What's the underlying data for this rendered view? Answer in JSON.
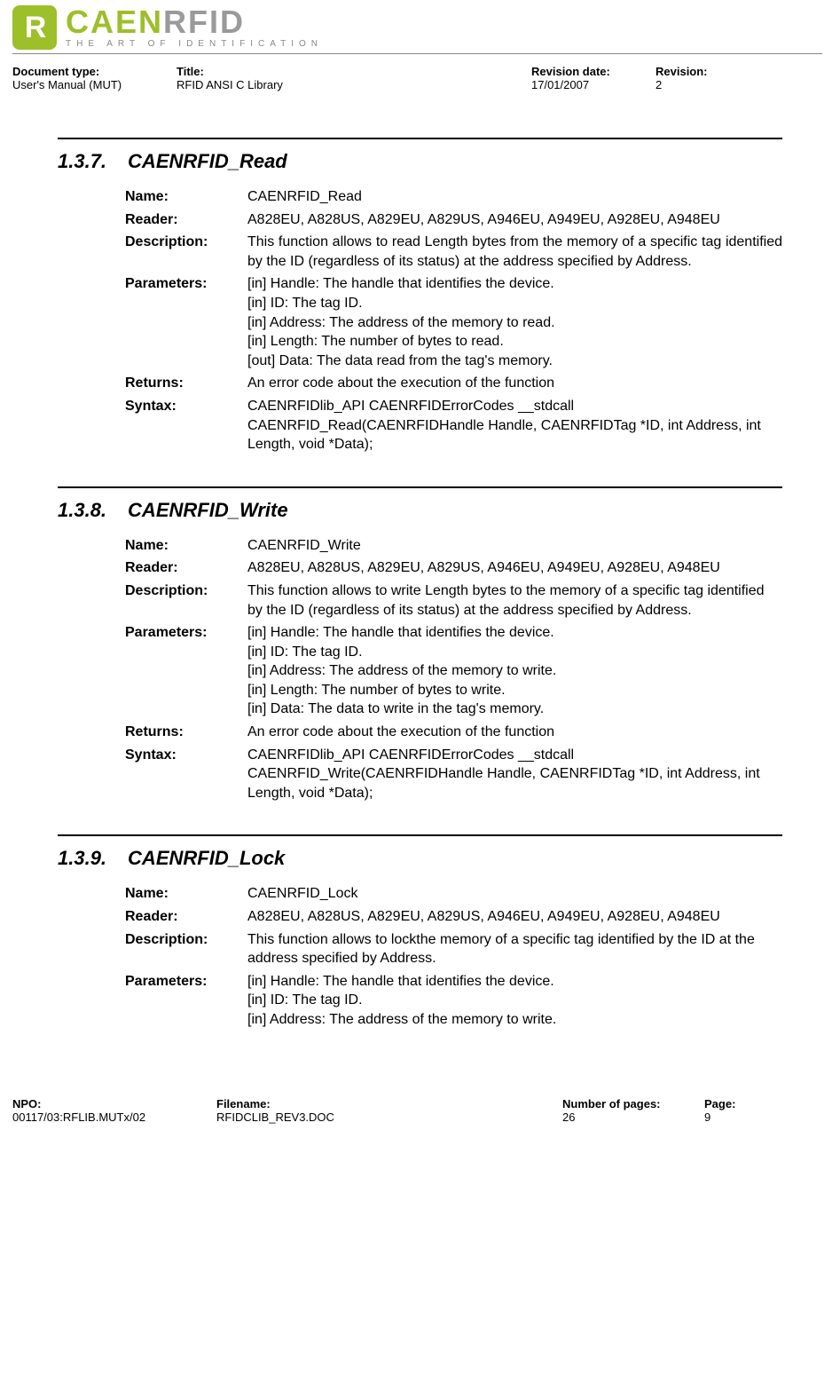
{
  "logo": {
    "glyph": "R",
    "brand_a": "CAEN",
    "brand_b": "RFID",
    "tagline": "THE ART OF IDENTIFICATION",
    "accent_color": "#9dbf2a",
    "muted_color": "#9a9a9a"
  },
  "header_meta": {
    "doc_type_label": "Document type:",
    "doc_type_value": "User's Manual (MUT)",
    "title_label": "Title:",
    "title_value": "RFID ANSI C Library",
    "rev_date_label": "Revision date:",
    "rev_date_value": "17/01/2007",
    "revision_label": "Revision:",
    "revision_value": "2"
  },
  "labels": {
    "name": "Name:",
    "reader": "Reader:",
    "description": "Description:",
    "parameters": "Parameters:",
    "returns": "Returns:",
    "syntax": "Syntax:"
  },
  "sections": [
    {
      "num": "1.3.7.",
      "title": "CAENRFID_Read",
      "name": "CAENRFID_Read",
      "reader": "A828EU, A828US, A829EU, A829US, A946EU, A949EU, A928EU, A948EU",
      "description": "This function allows to read Length bytes from the memory of a specific tag identified by the ID (regardless of its status) at the address specified by Address.",
      "parameters": [
        "[in]  Handle: The handle that identifies the device.",
        "[in]  ID: The tag ID.",
        "[in]  Address: The address of the memory to read.",
        "[in]  Length: The number of bytes to read.",
        "[out] Data: The data read from the tag's memory."
      ],
      "returns": "An error code about the execution of the function",
      "syntax": "CAENRFIDlib_API CAENRFIDErrorCodes __stdcall CAENRFID_Read(CAENRFIDHandle Handle, CAENRFIDTag *ID, int Address, int Length, void *Data);"
    },
    {
      "num": "1.3.8.",
      "title": "CAENRFID_Write",
      "name": "CAENRFID_Write",
      "reader": "A828EU, A828US, A829EU, A829US, A946EU, A949EU, A928EU, A948EU",
      "description": "This function allows to write Length bytes to the memory of a specific tag identified by the ID (regardless of its status) at the address specified by Address.",
      "parameters": [
        "[in]  Handle: The handle that identifies the device.",
        "[in]  ID: The tag ID.",
        "[in]  Address: The address of the memory to write.",
        "[in]  Length: The number of bytes to write.",
        "[in]  Data: The data to write in the tag's memory."
      ],
      "returns": "An error code about the execution of the function",
      "syntax": "CAENRFIDlib_API CAENRFIDErrorCodes __stdcall CAENRFID_Write(CAENRFIDHandle Handle, CAENRFIDTag *ID, int Address, int Length, void *Data);"
    },
    {
      "num": "1.3.9.",
      "title": "CAENRFID_Lock",
      "name": "CAENRFID_Lock",
      "reader": "A828EU, A828US, A829EU, A829US, A946EU, A949EU, A928EU, A948EU",
      "description": "This function allows to lockthe memory of a specific tag identified by the ID at the address specified by Address.",
      "parameters": [
        "[in]  Handle: The handle that identifies the device.",
        "[in]  ID: The tag ID.",
        "[in]  Address: The address of the memory to write."
      ],
      "returns": null,
      "syntax": null
    }
  ],
  "footer_meta": {
    "npo_label": "NPO:",
    "npo_value": "00117/03:RFLIB.MUTx/02",
    "filename_label": "Filename:",
    "filename_value": "RFIDCLIB_REV3.DOC",
    "pages_label": "Number of pages:",
    "pages_value": "26",
    "page_label": "Page:",
    "page_value": "9"
  }
}
